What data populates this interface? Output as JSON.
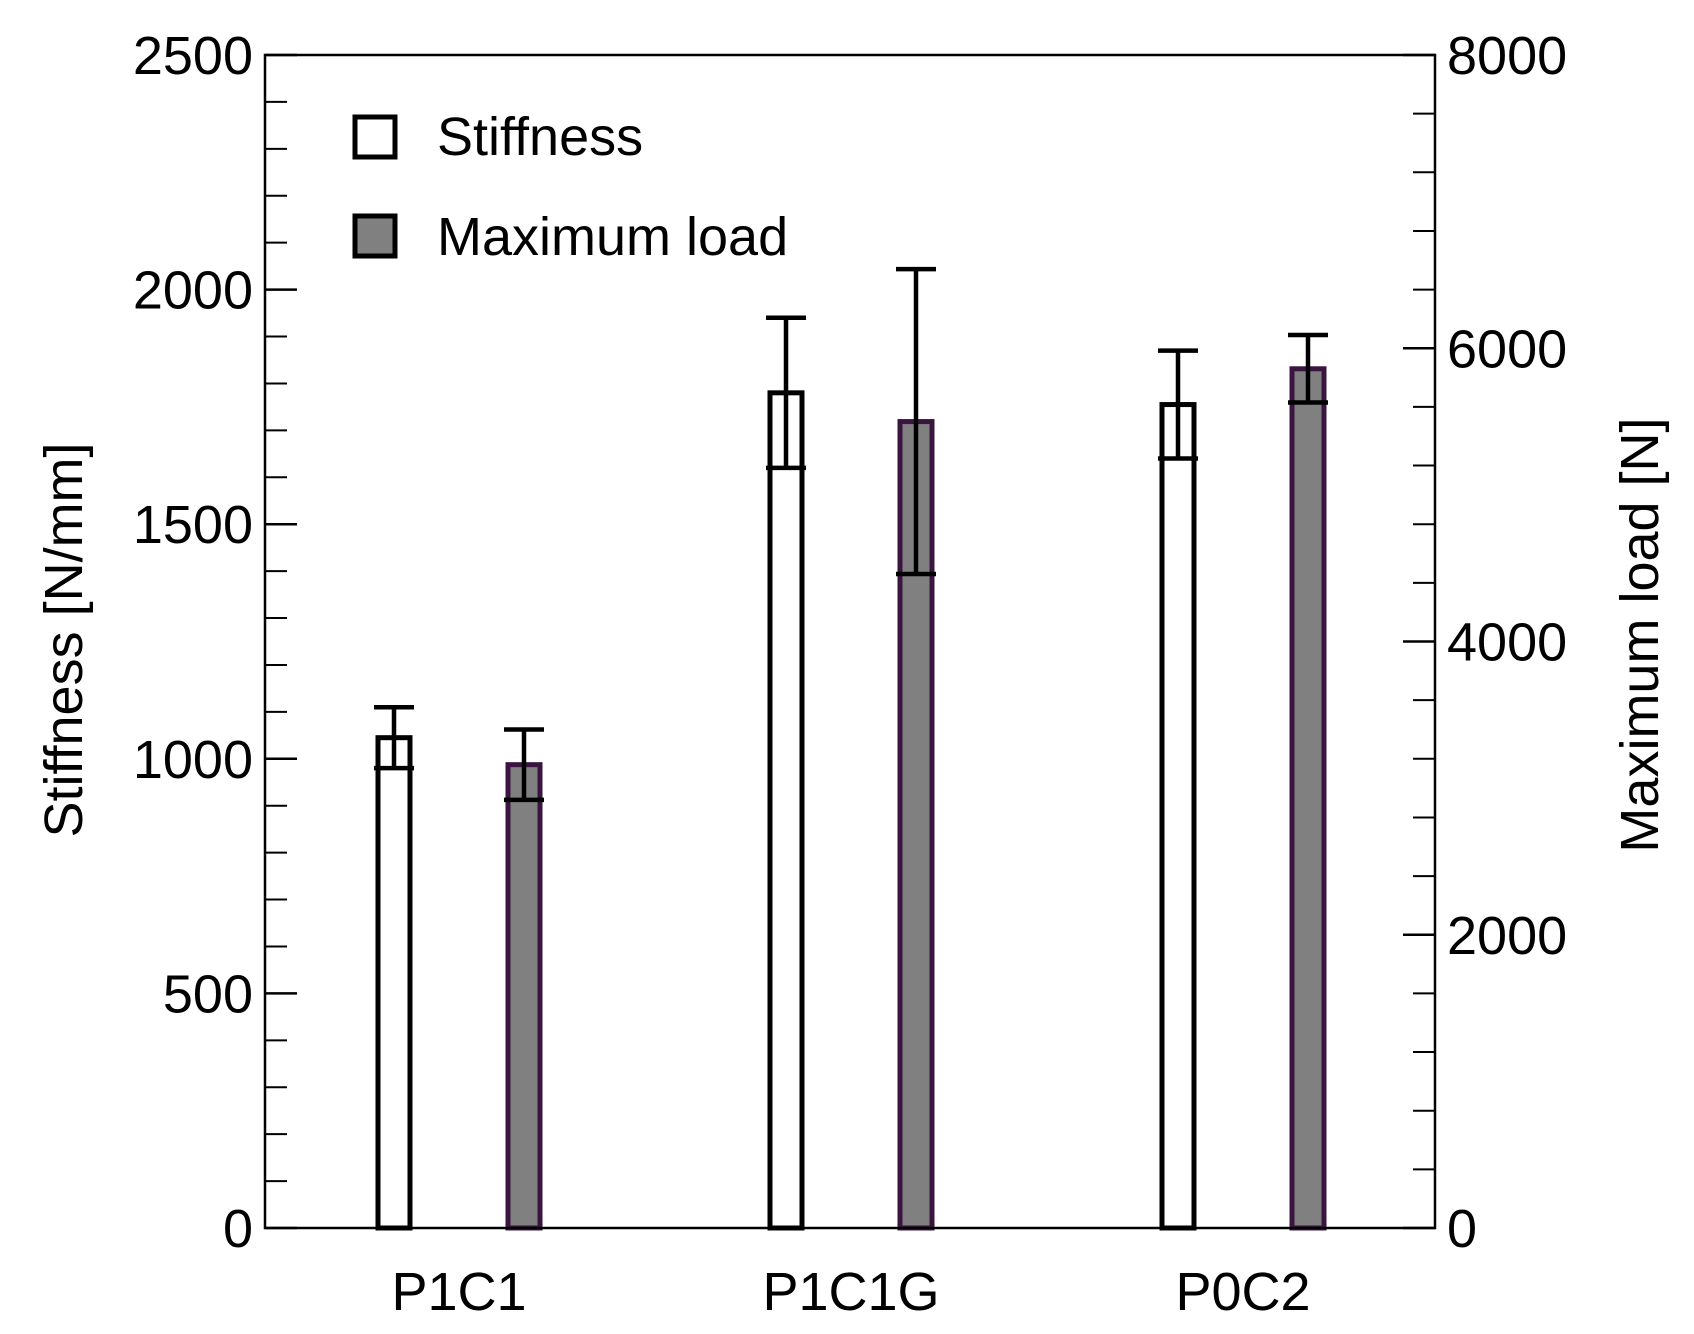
{
  "chart_data": {
    "type": "bar",
    "categories": [
      "P1C1",
      "P1C1G",
      "P0C2"
    ],
    "series": [
      {
        "name": "Stiffness",
        "axis": "left",
        "fill": "#ffffff",
        "stroke": "#000000",
        "values": [
          1045,
          1780,
          1755
        ],
        "errors": [
          65,
          160,
          115
        ]
      },
      {
        "name": "Maximum load",
        "axis": "right",
        "fill": "#808080",
        "stroke": "#3a1540",
        "values": [
          3160,
          5500,
          5860
        ],
        "errors": [
          240,
          1040,
          230
        ]
      }
    ],
    "left_axis": {
      "label": "Stiffness [N/mm]",
      "ylim": [
        0,
        2500
      ],
      "major_ticks": [
        0,
        500,
        1000,
        1500,
        2000,
        2500
      ],
      "minor_step": 100
    },
    "right_axis": {
      "label": "Maximum load [N]",
      "ylim": [
        0,
        8000
      ],
      "major_ticks": [
        0,
        2000,
        4000,
        6000,
        8000
      ],
      "minor_step": 400
    },
    "legend": {
      "position": "top-left",
      "entries": [
        "Stiffness",
        "Maximum load"
      ]
    },
    "grid": false
  }
}
